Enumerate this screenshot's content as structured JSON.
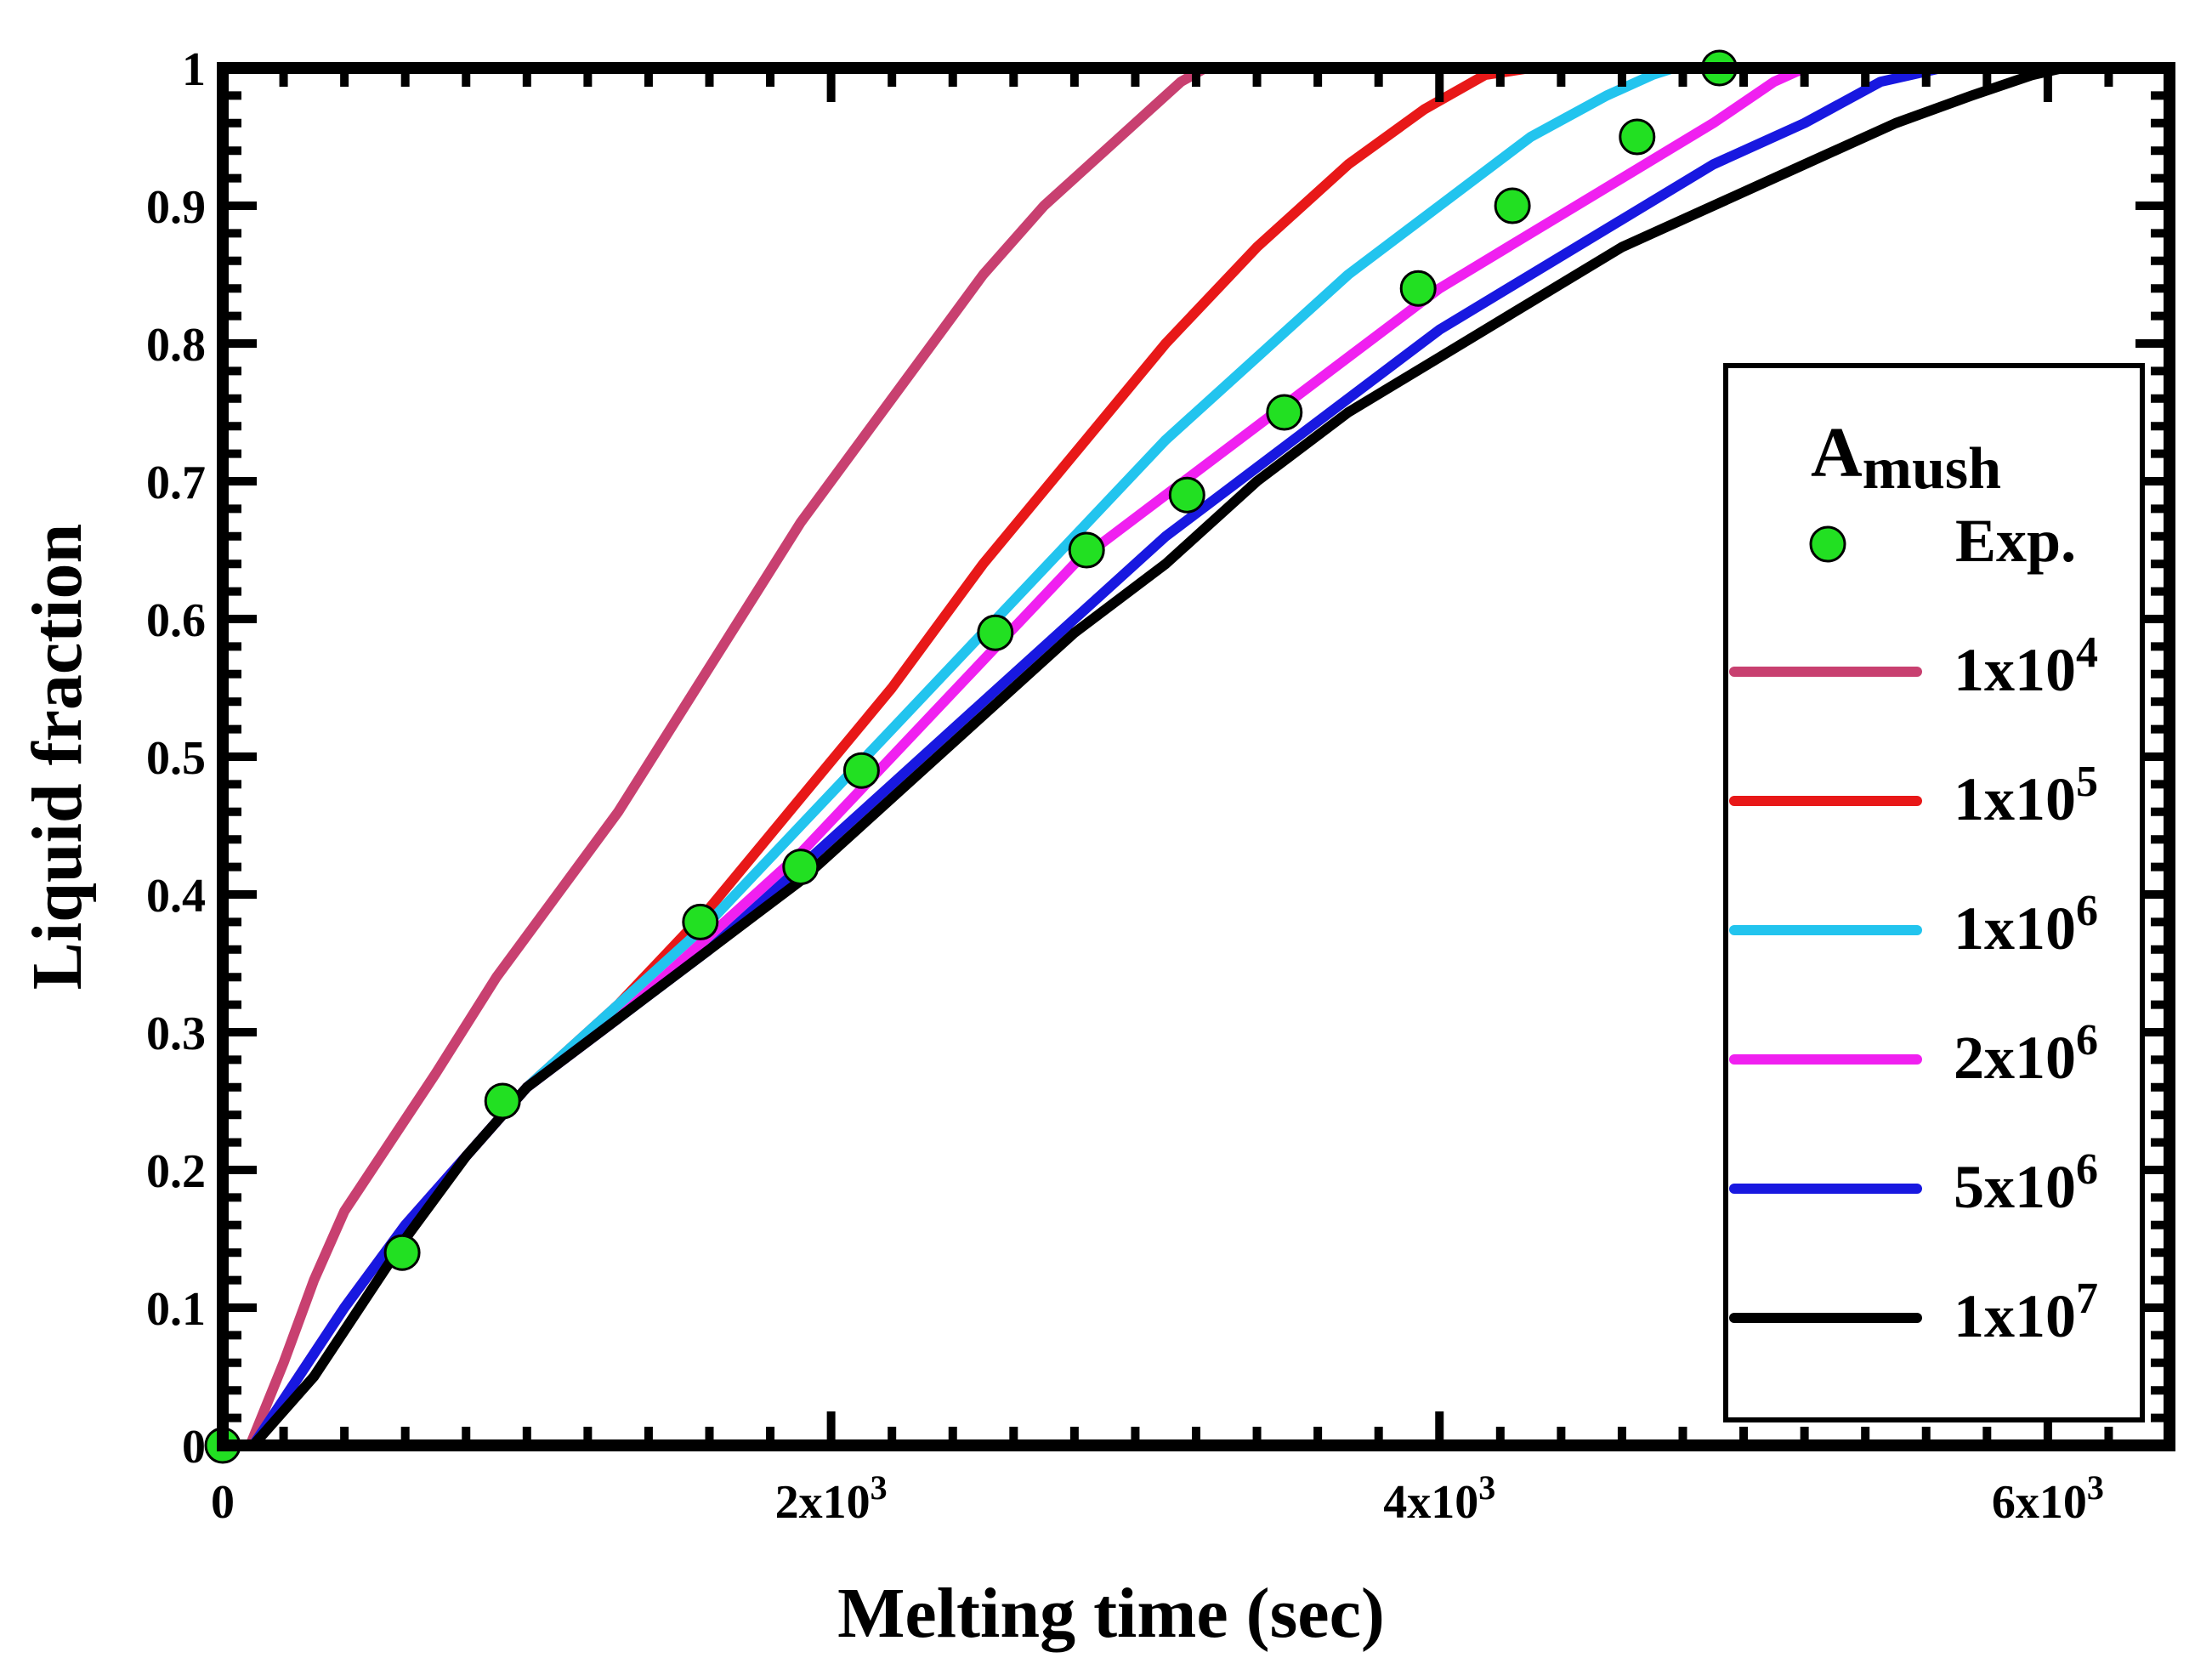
{
  "chart_data": {
    "type": "line",
    "title": "",
    "xlabel": "Melting time (sec)",
    "ylabel": "Liquid fraction",
    "xlim": [
      0,
      6400
    ],
    "ylim": [
      0,
      1
    ],
    "x_ticks": [
      {
        "value": 0,
        "base": "0",
        "exp": ""
      },
      {
        "value": 2000,
        "base": "2x10",
        "exp": "3"
      },
      {
        "value": 4000,
        "base": "4x10",
        "exp": "3"
      },
      {
        "value": 6000,
        "base": "6x10",
        "exp": "3"
      }
    ],
    "y_ticks": [
      {
        "value": 0,
        "label": "0"
      },
      {
        "value": 0.1,
        "label": "0.1"
      },
      {
        "value": 0.2,
        "label": "0.2"
      },
      {
        "value": 0.3,
        "label": "0.3"
      },
      {
        "value": 0.4,
        "label": "0.4"
      },
      {
        "value": 0.5,
        "label": "0.5"
      },
      {
        "value": 0.6,
        "label": "0.6"
      },
      {
        "value": 0.7,
        "label": "0.7"
      },
      {
        "value": 0.8,
        "label": "0.8"
      },
      {
        "value": 0.9,
        "label": "0.9"
      },
      {
        "value": 1,
        "label": "1"
      }
    ],
    "legend": {
      "placement": "right",
      "title_main": "A",
      "title_sub": "mush"
    },
    "scatter": {
      "name": "Exp.",
      "color": "#22e022",
      "x": [
        0,
        590,
        920,
        1570,
        1900,
        2100,
        2540,
        2840,
        3170,
        3490,
        3930,
        4240,
        4650,
        4920
      ],
      "y": [
        0,
        0.14,
        0.25,
        0.38,
        0.42,
        0.49,
        0.59,
        0.65,
        0.69,
        0.75,
        0.84,
        0.9,
        0.95,
        1.0
      ]
    },
    "series": [
      {
        "name": "1x10",
        "exp": "4",
        "color": "#c84070",
        "x": [
          0,
          90,
          200,
          300,
          400,
          550,
          700,
          900,
          1100,
          1300,
          1500,
          1700,
          1900,
          2100,
          2300,
          2500,
          2700,
          2900,
          3050,
          3150,
          3230
        ],
        "y": [
          0,
          0,
          0.06,
          0.12,
          0.17,
          0.22,
          0.27,
          0.34,
          0.4,
          0.46,
          0.53,
          0.6,
          0.67,
          0.73,
          0.79,
          0.85,
          0.9,
          0.94,
          0.97,
          0.99,
          1.0
        ]
      },
      {
        "name": "1x10",
        "exp": "5",
        "color": "#e81818",
        "x": [
          0,
          100,
          250,
          400,
          600,
          800,
          1000,
          1300,
          1600,
          1900,
          2200,
          2500,
          2800,
          3100,
          3400,
          3700,
          3950,
          4150,
          4300
        ],
        "y": [
          0,
          0,
          0.05,
          0.1,
          0.16,
          0.21,
          0.26,
          0.32,
          0.39,
          0.47,
          0.55,
          0.64,
          0.72,
          0.8,
          0.87,
          0.93,
          0.97,
          0.995,
          1.0
        ]
      },
      {
        "name": "1x10",
        "exp": "6",
        "color": "#22c4ee",
        "x": [
          0,
          100,
          250,
          400,
          600,
          800,
          1000,
          1300,
          1600,
          1900,
          2200,
          2500,
          2800,
          3100,
          3400,
          3700,
          4000,
          4300,
          4550,
          4700,
          4770
        ],
        "y": [
          0,
          0,
          0.05,
          0.1,
          0.16,
          0.21,
          0.26,
          0.32,
          0.38,
          0.45,
          0.52,
          0.59,
          0.66,
          0.73,
          0.79,
          0.85,
          0.9,
          0.95,
          0.98,
          0.995,
          1.0
        ]
      },
      {
        "name": "2x10",
        "exp": "6",
        "color": "#f020f0",
        "x": [
          0,
          100,
          250,
          400,
          600,
          800,
          1000,
          1300,
          1600,
          1900,
          2200,
          2500,
          2800,
          3100,
          3400,
          3700,
          4000,
          4300,
          4600,
          4900,
          5100,
          5200
        ],
        "y": [
          0,
          0,
          0.05,
          0.1,
          0.16,
          0.21,
          0.26,
          0.31,
          0.37,
          0.43,
          0.5,
          0.57,
          0.64,
          0.69,
          0.74,
          0.79,
          0.84,
          0.88,
          0.92,
          0.96,
          0.99,
          1.0
        ]
      },
      {
        "name": "5x10",
        "exp": "6",
        "color": "#1818e0",
        "x": [
          0,
          100,
          250,
          400,
          600,
          800,
          1000,
          1300,
          1600,
          1900,
          2200,
          2500,
          2800,
          3100,
          3400,
          3700,
          4000,
          4300,
          4600,
          4900,
          5200,
          5450,
          5650
        ],
        "y": [
          0,
          0,
          0.05,
          0.1,
          0.16,
          0.21,
          0.26,
          0.31,
          0.36,
          0.42,
          0.48,
          0.54,
          0.6,
          0.66,
          0.71,
          0.76,
          0.81,
          0.85,
          0.89,
          0.93,
          0.96,
          0.99,
          1.0
        ]
      },
      {
        "name": "1x10",
        "exp": "7",
        "color": "#000000",
        "x": [
          0,
          100,
          300,
          450,
          600,
          800,
          1000,
          1300,
          1600,
          1900,
          2200,
          2500,
          2800,
          3100,
          3400,
          3700,
          4000,
          4300,
          4600,
          4900,
          5200,
          5500,
          5750,
          5950,
          6050
        ],
        "y": [
          0,
          0,
          0.05,
          0.1,
          0.15,
          0.21,
          0.26,
          0.31,
          0.36,
          0.41,
          0.47,
          0.53,
          0.59,
          0.64,
          0.7,
          0.75,
          0.79,
          0.83,
          0.87,
          0.9,
          0.93,
          0.96,
          0.98,
          0.995,
          1.0
        ]
      }
    ]
  }
}
